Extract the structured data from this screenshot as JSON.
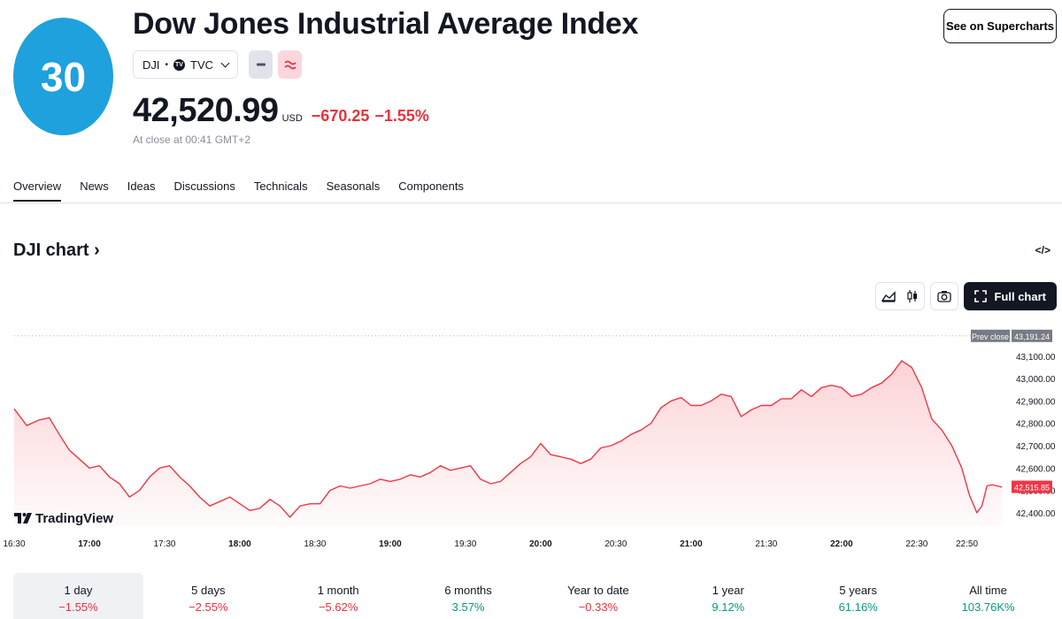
{
  "header": {
    "logo_text": "30",
    "title": "Dow Jones Industrial Average Index",
    "supercharts_label": "See on Supercharts",
    "symbol": "DJI",
    "exchange_badge": "TV",
    "exchange": "TVC",
    "price": "42,520.99",
    "currency": "USD",
    "change_abs": "−670.25",
    "change_pct": "−1.55%",
    "close_note": "At close at 00:41 GMT+2"
  },
  "tabs": [
    {
      "label": "Overview"
    },
    {
      "label": "News"
    },
    {
      "label": "Ideas"
    },
    {
      "label": "Discussions"
    },
    {
      "label": "Technicals"
    },
    {
      "label": "Seasonals"
    },
    {
      "label": "Components"
    }
  ],
  "section": {
    "title": "DJI chart",
    "embed_icon": "</>"
  },
  "toolbar": {
    "full_chart_label": "Full chart"
  },
  "watermark": "TradingView",
  "colors": {
    "accent_red": "#e8323c",
    "accent_green": "#089981",
    "logo_blue": "#1ea1dd"
  },
  "periods": [
    {
      "label": "1 day",
      "value": "−1.55%",
      "sign": "neg"
    },
    {
      "label": "5 days",
      "value": "−2.55%",
      "sign": "neg"
    },
    {
      "label": "1 month",
      "value": "−5.62%",
      "sign": "neg"
    },
    {
      "label": "6 months",
      "value": "3.57%",
      "sign": "pos"
    },
    {
      "label": "Year to date",
      "value": "−0.33%",
      "sign": "neg"
    },
    {
      "label": "1 year",
      "value": "9.12%",
      "sign": "pos"
    },
    {
      "label": "5 years",
      "value": "61.16%",
      "sign": "pos"
    },
    {
      "label": "All time",
      "value": "103.76K%",
      "sign": "pos"
    }
  ],
  "chart_data": {
    "type": "area",
    "title": "",
    "xlabel": "",
    "ylabel": "",
    "ylim": [
      42340,
      43230
    ],
    "prev_close": 43191.24,
    "prev_close_label": "Prev close",
    "last_price": 42515.85,
    "y_ticks": [
      43100,
      43000,
      42900,
      42800,
      42700,
      42600,
      42500,
      42400
    ],
    "y_tick_labels": [
      "43,100.00",
      "43,000.00",
      "42,900.00",
      "42,800.00",
      "42,700.00",
      "42,600.00",
      "42,500.00",
      "42,400.00"
    ],
    "prev_close_text": "43,191.24",
    "last_price_text": "42,515.85",
    "x_ticks": [
      {
        "t": 990,
        "label": "16:30",
        "bold": false
      },
      {
        "t": 1020,
        "label": "17:00",
        "bold": true
      },
      {
        "t": 1050,
        "label": "17:30",
        "bold": false
      },
      {
        "t": 1080,
        "label": "18:00",
        "bold": true
      },
      {
        "t": 1110,
        "label": "18:30",
        "bold": false
      },
      {
        "t": 1140,
        "label": "19:00",
        "bold": true
      },
      {
        "t": 1170,
        "label": "19:30",
        "bold": false
      },
      {
        "t": 1200,
        "label": "20:00",
        "bold": true
      },
      {
        "t": 1230,
        "label": "20:30",
        "bold": false
      },
      {
        "t": 1260,
        "label": "21:00",
        "bold": true
      },
      {
        "t": 1290,
        "label": "21:30",
        "bold": false
      },
      {
        "t": 1320,
        "label": "22:00",
        "bold": true
      },
      {
        "t": 1350,
        "label": "22:30",
        "bold": false
      },
      {
        "t": 1370,
        "label": "22:50",
        "bold": false
      }
    ],
    "xlim": [
      990,
      1385
    ],
    "series": [
      {
        "x": [
          990,
          995,
          1000,
          1004,
          1008,
          1012,
          1016,
          1020,
          1024,
          1028,
          1032,
          1036,
          1040,
          1044,
          1048,
          1052,
          1056,
          1060,
          1064,
          1068,
          1072,
          1076,
          1080,
          1084,
          1088,
          1092,
          1096,
          1100,
          1104,
          1108,
          1112,
          1116,
          1120,
          1124,
          1128,
          1132,
          1136,
          1140,
          1144,
          1148,
          1152,
          1156,
          1160,
          1164,
          1168,
          1172,
          1176,
          1180,
          1184,
          1188,
          1192,
          1196,
          1200,
          1204,
          1208,
          1212,
          1216,
          1220,
          1224,
          1228,
          1232,
          1236,
          1240,
          1244,
          1248,
          1252,
          1256,
          1260,
          1264,
          1268,
          1272,
          1276,
          1280,
          1284,
          1288,
          1292,
          1296,
          1300,
          1304,
          1308,
          1312,
          1316,
          1320,
          1324,
          1328,
          1332,
          1336,
          1340,
          1344,
          1348,
          1352,
          1356,
          1360,
          1364,
          1368,
          1371,
          1374,
          1376,
          1378,
          1380,
          1382,
          1384
        ],
        "y": [
          42865,
          42790,
          42815,
          42825,
          42750,
          42680,
          42640,
          42600,
          42610,
          42560,
          42530,
          42470,
          42500,
          42560,
          42600,
          42610,
          42560,
          42520,
          42470,
          42430,
          42450,
          42470,
          42440,
          42410,
          42420,
          42460,
          42430,
          42380,
          42430,
          42440,
          42440,
          42500,
          42520,
          42510,
          42520,
          42530,
          42550,
          42540,
          42550,
          42570,
          42560,
          42580,
          42610,
          42590,
          42600,
          42610,
          42550,
          42530,
          42540,
          42580,
          42620,
          42650,
          42710,
          42660,
          42650,
          42640,
          42620,
          42640,
          42690,
          42700,
          42720,
          42750,
          42770,
          42800,
          42870,
          42900,
          42915,
          42880,
          42880,
          42900,
          42930,
          42920,
          42830,
          42860,
          42880,
          42880,
          42910,
          42910,
          42950,
          42920,
          42960,
          42970,
          42960,
          42920,
          42930,
          42960,
          42980,
          43020,
          43080,
          43050,
          42960,
          42820,
          42770,
          42700,
          42600,
          42480,
          42400,
          42430,
          42520,
          42525,
          42520,
          42515
        ]
      }
    ]
  }
}
